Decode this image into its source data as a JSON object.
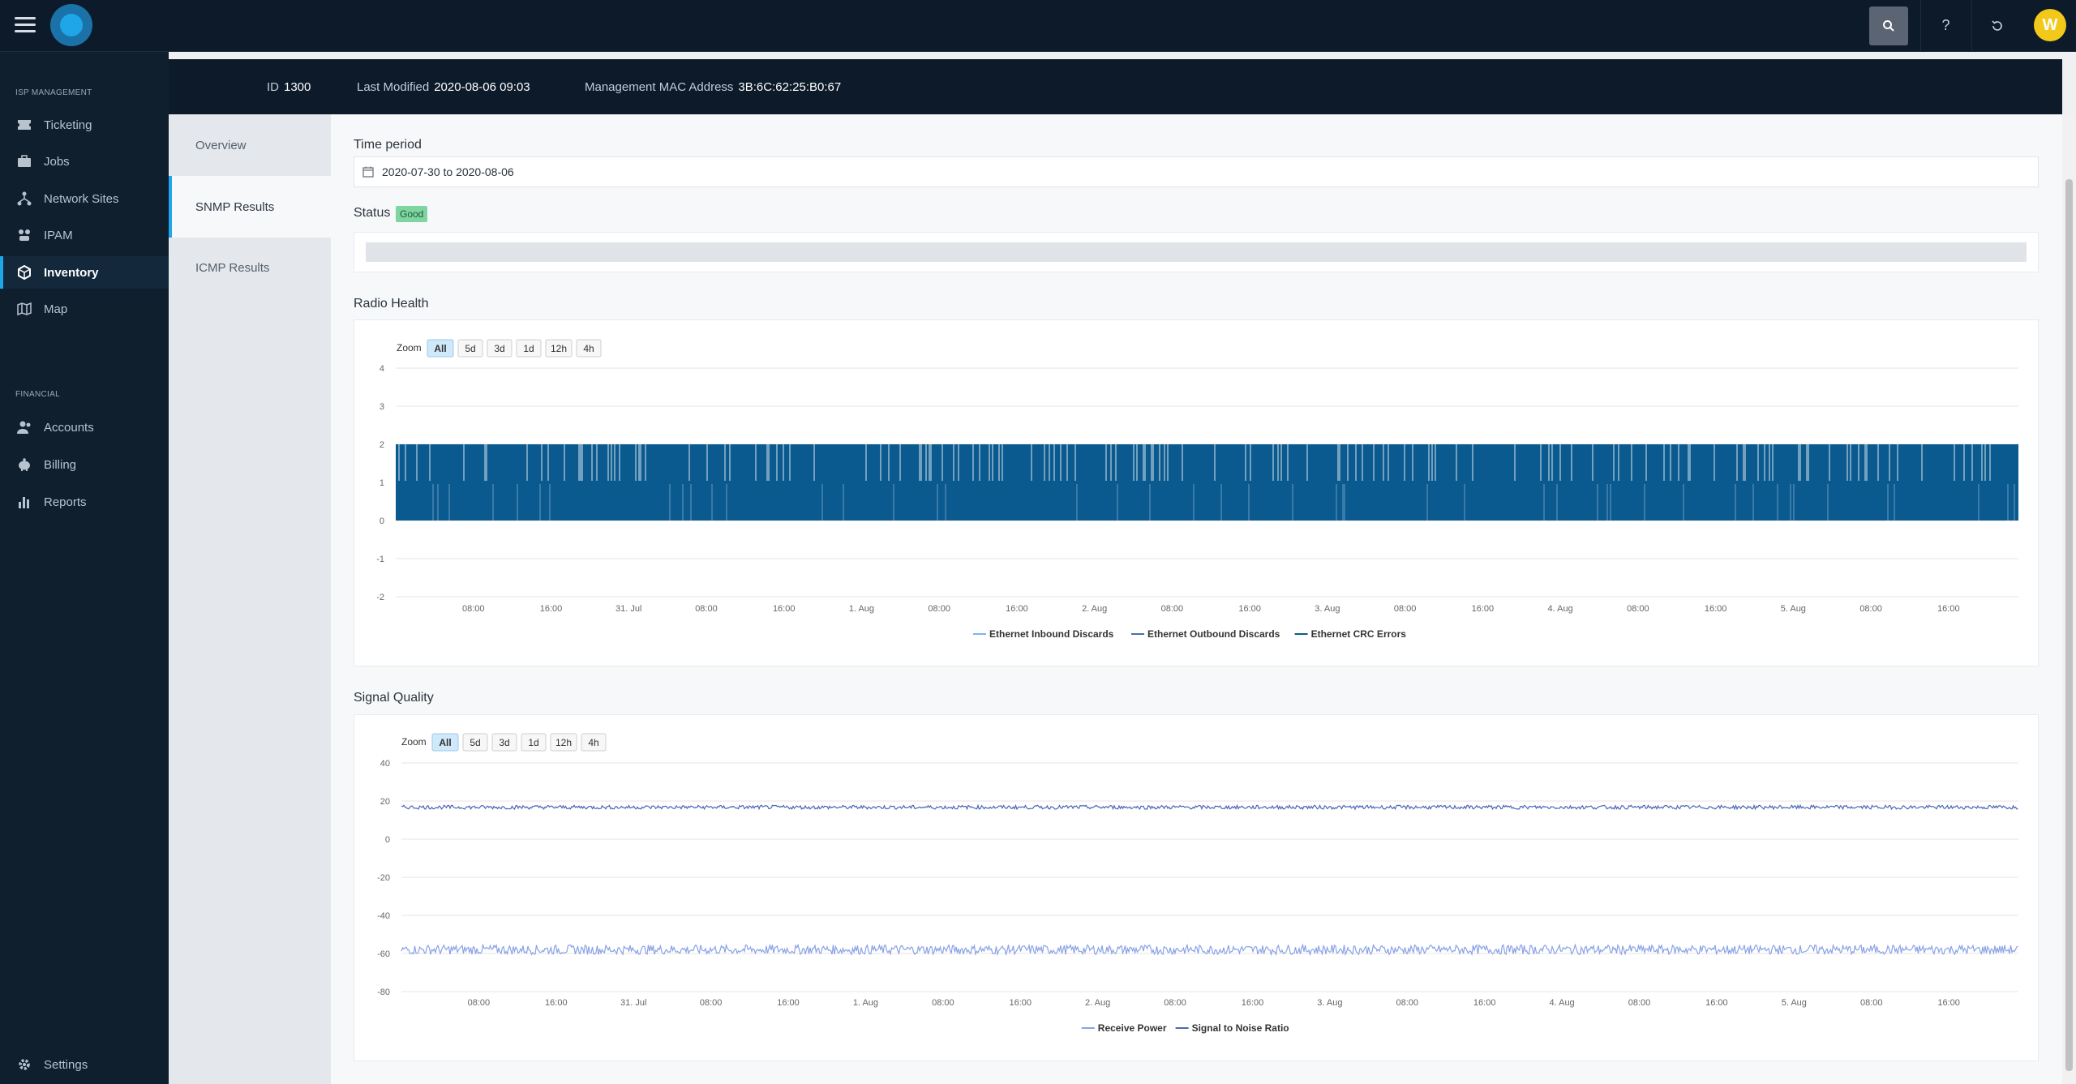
{
  "topbar": {
    "menu_icon": "hamburger-icon",
    "logo_icon": "app-logo",
    "search_icon": "search-icon",
    "help_label": "?",
    "refresh_icon": "refresh-icon",
    "avatar_initial": "W",
    "avatar_color": "#f2c81a"
  },
  "sidebar": {
    "section_isp": "ISP MANAGEMENT",
    "section_financial": "FINANCIAL",
    "isp_items": [
      {
        "label": "Ticketing",
        "icon": "ticket-icon"
      },
      {
        "label": "Jobs",
        "icon": "briefcase-icon"
      },
      {
        "label": "Network Sites",
        "icon": "network-icon"
      },
      {
        "label": "IPAM",
        "icon": "ipam-icon"
      },
      {
        "label": "Inventory",
        "icon": "box-icon",
        "active": true
      },
      {
        "label": "Map",
        "icon": "map-icon"
      }
    ],
    "financial_items": [
      {
        "label": "Accounts",
        "icon": "users-icon"
      },
      {
        "label": "Billing",
        "icon": "piggy-bank-icon"
      },
      {
        "label": "Reports",
        "icon": "bar-chart-icon"
      }
    ],
    "settings_label": "Settings"
  },
  "infobar": {
    "id_label": "ID",
    "id_value": "1300",
    "modified_label": "Last Modified",
    "modified_value": "2020-08-06 09:03",
    "mac_label": "Management MAC Address",
    "mac_value": "3B:6C:62:25:B0:67"
  },
  "tabs": [
    {
      "label": "Overview"
    },
    {
      "label": "SNMP Results",
      "active": true
    },
    {
      "label": "ICMP Results"
    }
  ],
  "time_period": {
    "label": "Time period",
    "value": "2020-07-30 to 2020-08-06"
  },
  "status": {
    "label": "Status",
    "badge": "Good"
  },
  "zoom": {
    "label": "Zoom",
    "options": [
      "All",
      "5d",
      "3d",
      "1d",
      "12h",
      "4h"
    ],
    "selected": "All"
  },
  "accent_color": "#1fa6e8",
  "chart_data": [
    {
      "title": "Radio Health",
      "type": "area",
      "ylim": [
        -2,
        4
      ],
      "yticks": [
        4,
        3,
        2,
        1,
        0,
        -1,
        -2
      ],
      "xticks": [
        "08:00",
        "16:00",
        "31. Jul",
        "08:00",
        "16:00",
        "1. Aug",
        "08:00",
        "16:00",
        "2. Aug",
        "08:00",
        "16:00",
        "3. Aug",
        "08:00",
        "16:00",
        "4. Aug",
        "08:00",
        "16:00",
        "5. Aug",
        "08:00",
        "16:00"
      ],
      "series": [
        {
          "name": "Ethernet Inbound Discards",
          "color": "#7cb5ec",
          "values": [
            0,
            0,
            0,
            0
          ]
        },
        {
          "name": "Ethernet Outbound Discards",
          "color": "#4a6fa5",
          "values": [
            0,
            0,
            0,
            0
          ]
        },
        {
          "name": "Ethernet CRC Errors",
          "color": "#0b5a8f",
          "values": [
            2,
            1,
            2,
            1
          ]
        }
      ],
      "legend": "bottom-center"
    },
    {
      "title": "Signal Quality",
      "type": "line",
      "ylim": [
        -80,
        40
      ],
      "yticks": [
        40,
        20,
        0,
        -20,
        -40,
        -60,
        -80
      ],
      "xticks": [
        "08:00",
        "16:00",
        "31. Jul",
        "08:00",
        "16:00",
        "1. Aug",
        "08:00",
        "16:00",
        "2. Aug",
        "08:00",
        "16:00",
        "3. Aug",
        "08:00",
        "16:00",
        "4. Aug",
        "08:00",
        "16:00",
        "5. Aug",
        "08:00",
        "16:00"
      ],
      "series": [
        {
          "name": "Receive Power",
          "color": "#8aa2e6",
          "values": [
            -58,
            -57,
            -59,
            -58
          ]
        },
        {
          "name": "Signal to Noise Ratio",
          "color": "#4a68b5",
          "values": [
            17,
            17,
            16,
            17
          ]
        }
      ],
      "legend": "bottom-center"
    }
  ]
}
